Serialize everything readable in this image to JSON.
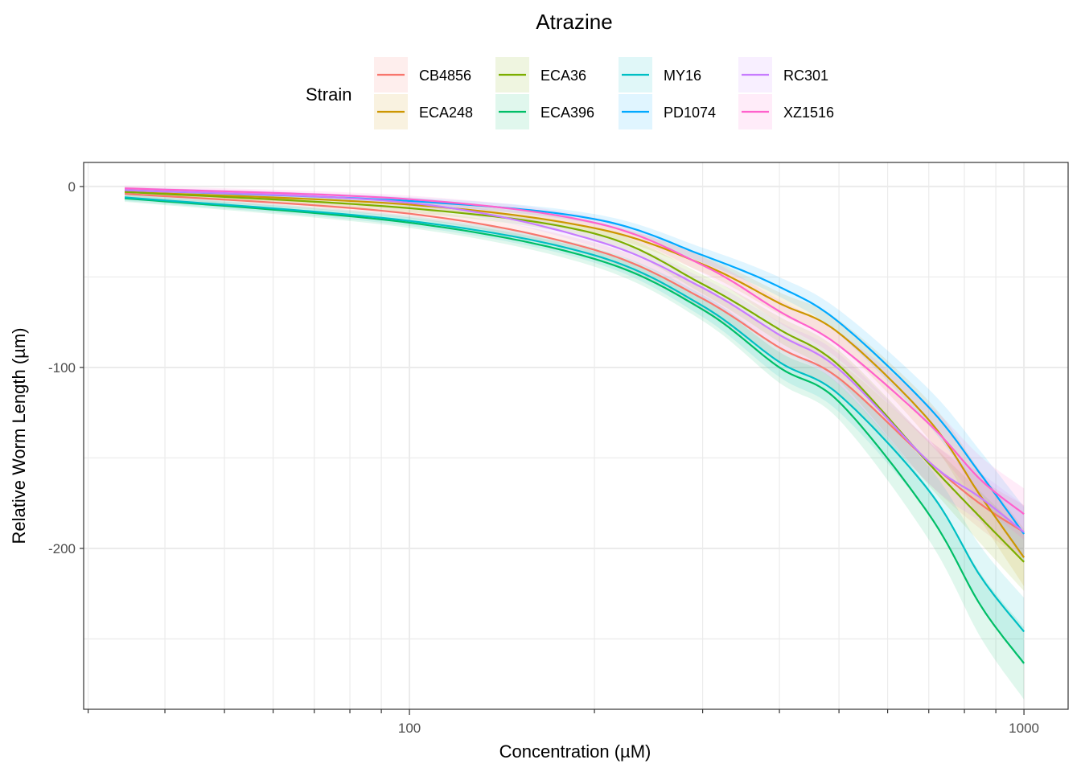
{
  "chart_data": {
    "type": "line",
    "title": "Atrazine",
    "xlabel": "Concentration (µM)",
    "ylabel": "Relative Worm Length (µm)",
    "xscale": "log10",
    "xlim": [
      29.5,
      1180
    ],
    "ylim": [
      -288.9,
      13.3
    ],
    "x_ticks": [
      100,
      1000
    ],
    "x_tick_labels": [
      "100",
      "1000"
    ],
    "y_ticks": [
      0,
      -100,
      -200
    ],
    "y_tick_labels": [
      "0",
      "-100",
      "-200"
    ],
    "grid": true,
    "legend": {
      "title": "Strain",
      "placement": "top"
    },
    "ci_relative": 0.07,
    "x": [
      34.4,
      100,
      200,
      300,
      400,
      500,
      700,
      850,
      1000
    ],
    "series": [
      {
        "name": "CB4856",
        "color": "#F8766D",
        "values": [
          -4,
          -15,
          -35,
          -62,
          -89,
          -106,
          -152,
          -175.5,
          -191
        ]
      },
      {
        "name": "ECA248",
        "color": "#CD9600",
        "values": [
          -3,
          -10,
          -23,
          -43,
          -64.5,
          -81,
          -129,
          -171,
          -205
        ]
      },
      {
        "name": "ECA36",
        "color": "#7CAE00",
        "values": [
          -3,
          -12,
          -26,
          -54,
          -79,
          -99,
          -153,
          -183,
          -207.5
        ]
      },
      {
        "name": "ECA396",
        "color": "#00BE67",
        "values": [
          -6.5,
          -20,
          -40,
          -68,
          -100,
          -119,
          -181,
          -231.5,
          -263.5
        ]
      },
      {
        "name": "MY16",
        "color": "#00BFC4",
        "values": [
          -6,
          -19,
          -38,
          -66,
          -97,
          -115,
          -168,
          -215.5,
          -246
        ]
      },
      {
        "name": "PD1074",
        "color": "#00A9FF",
        "values": [
          -2,
          -8,
          -18,
          -38,
          -55.5,
          -75,
          -122,
          -159,
          -192
        ]
      },
      {
        "name": "RC301",
        "color": "#C77CFF",
        "values": [
          -2,
          -9,
          -29.7,
          -56,
          -82,
          -101,
          -152,
          -172,
          -191
        ]
      },
      {
        "name": "XZ1516",
        "color": "#FF61CC",
        "values": [
          -1,
          -7,
          -20,
          -43.5,
          -69,
          -88,
          -131,
          -162,
          -181
        ]
      }
    ]
  }
}
